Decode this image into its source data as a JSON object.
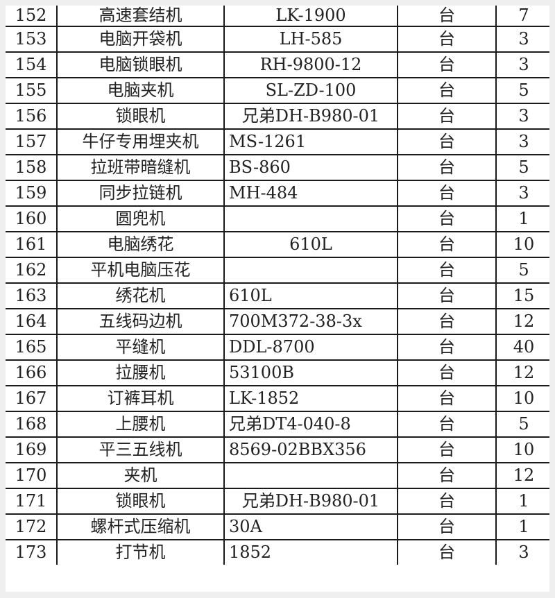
{
  "rows": [
    {
      "no": "152",
      "name": "高速套结机",
      "model": "LK-1900",
      "align": "center",
      "unit": "台",
      "qty": "7"
    },
    {
      "no": "153",
      "name": "电脑开袋机",
      "model": "LH-585",
      "align": "center",
      "unit": "台",
      "qty": "3"
    },
    {
      "no": "154",
      "name": "电脑锁眼机",
      "model": "RH-9800-12",
      "align": "center",
      "unit": "台",
      "qty": "3"
    },
    {
      "no": "155",
      "name": "电脑夹机",
      "model": "SL-ZD-100",
      "align": "center",
      "unit": "台",
      "qty": "5"
    },
    {
      "no": "156",
      "name": "锁眼机",
      "model": "兄弟DH-B980-01",
      "align": "center",
      "unit": "台",
      "qty": "3"
    },
    {
      "no": "157",
      "name": "牛仔专用埋夹机",
      "model": "MS-1261",
      "align": "left",
      "unit": "台",
      "qty": "3"
    },
    {
      "no": "158",
      "name": "拉班带暗缝机",
      "model": "BS-860",
      "align": "left",
      "unit": "台",
      "qty": "5"
    },
    {
      "no": "159",
      "name": "同步拉链机",
      "model": "MH-484",
      "align": "left",
      "unit": "台",
      "qty": "3"
    },
    {
      "no": "160",
      "name": "圆兜机",
      "model": "",
      "align": "left",
      "unit": "台",
      "qty": "1"
    },
    {
      "no": "161",
      "name": "电脑绣花",
      "model": "610L",
      "align": "center",
      "unit": "台",
      "qty": "10"
    },
    {
      "no": "162",
      "name": "平机电脑压花",
      "model": "",
      "align": "left",
      "unit": "台",
      "qty": "5"
    },
    {
      "no": "163",
      "name": "绣花机",
      "model": "610L",
      "align": "left",
      "unit": "台",
      "qty": "15"
    },
    {
      "no": "164",
      "name": "五线码边机",
      "model": "700M372-38-3x",
      "align": "left",
      "unit": "台",
      "qty": "12"
    },
    {
      "no": "165",
      "name": "平缝机",
      "model": "DDL-8700",
      "align": "left",
      "unit": "台",
      "qty": "40"
    },
    {
      "no": "166",
      "name": "拉腰机",
      "model": "53100B",
      "align": "left",
      "unit": "台",
      "qty": "12"
    },
    {
      "no": "167",
      "name": "订裤耳机",
      "model": "LK-1852",
      "align": "left",
      "unit": "台",
      "qty": "10"
    },
    {
      "no": "168",
      "name": "上腰机",
      "model": "兄弟DT4-040-8",
      "align": "left",
      "unit": "台",
      "qty": "5"
    },
    {
      "no": "169",
      "name": "平三五线机",
      "model": "8569-02BBX356",
      "align": "left",
      "unit": "台",
      "qty": "10"
    },
    {
      "no": "170",
      "name": "夹机",
      "model": "",
      "align": "left",
      "unit": "台",
      "qty": "12"
    },
    {
      "no": "171",
      "name": "锁眼机",
      "model": "兄弟DH-B980-01",
      "align": "center",
      "unit": "台",
      "qty": "1"
    },
    {
      "no": "172",
      "name": "螺杆式压缩机",
      "model": "30A",
      "align": "left",
      "unit": "台",
      "qty": "1"
    },
    {
      "no": "173",
      "name": "打节机",
      "model": "1852",
      "align": "left",
      "unit": "台",
      "qty": "3"
    }
  ]
}
